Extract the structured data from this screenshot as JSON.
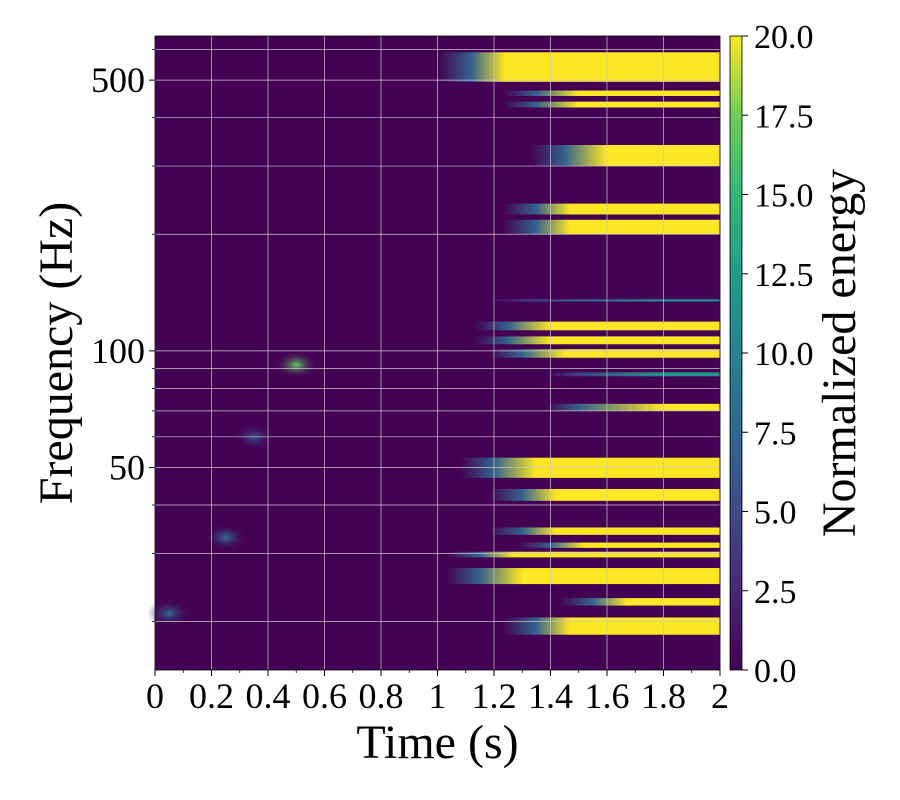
{
  "chart_data": {
    "type": "heatmap",
    "title": "",
    "xlabel": "Time (s)",
    "ylabel": "Frequency (Hz)",
    "colorbar_label": "Normalized energy",
    "colormap": "viridis",
    "xlim": [
      0,
      2
    ],
    "ylim_hz": [
      15,
      650
    ],
    "y_scale": "log",
    "grid": true,
    "x_ticks": [
      0,
      0.2,
      0.4,
      0.6,
      0.8,
      1,
      1.2,
      1.4,
      1.6,
      1.8,
      2
    ],
    "x_tick_labels": [
      "0",
      "0.2",
      "0.4",
      "0.6",
      "0.8",
      "1",
      "1.2",
      "1.4",
      "1.6",
      "1.8",
      "2"
    ],
    "y_major_ticks": [
      50,
      100,
      500
    ],
    "y_major_labels": [
      "50",
      "100",
      "500"
    ],
    "y_minor_ticks": [
      20,
      30,
      40,
      60,
      70,
      80,
      90,
      200,
      300,
      400,
      600
    ],
    "colorbar_range": [
      0,
      20
    ],
    "colorbar_ticks": [
      0,
      2.5,
      5,
      7.5,
      10,
      12.5,
      15,
      17.5,
      20
    ],
    "colorbar_tick_labels": [
      "0.0",
      "2.5",
      "5.0",
      "7.5",
      "10.0",
      "12.5",
      "15.0",
      "17.5",
      "20.0"
    ],
    "colors": {
      "viridis_low": "#440154",
      "viridis_mid": "#21918c",
      "viridis_high": "#fde725",
      "grid": "#c8c8c8"
    },
    "high_energy_bands": [
      {
        "f_lo": 495,
        "f_hi": 590,
        "t_start": 1.12,
        "t_ramp": 0.12
      },
      {
        "f_lo": 455,
        "f_hi": 470,
        "t_start": 1.35,
        "t_ramp": 0.15
      },
      {
        "f_lo": 425,
        "f_hi": 440,
        "t_start": 1.35,
        "t_ramp": 0.15
      },
      {
        "f_lo": 300,
        "f_hi": 340,
        "t_start": 1.45,
        "t_ramp": 0.15
      },
      {
        "f_lo": 225,
        "f_hi": 240,
        "t_start": 1.35,
        "t_ramp": 0.12
      },
      {
        "f_lo": 200,
        "f_hi": 218,
        "t_start": 1.35,
        "t_ramp": 0.12
      },
      {
        "f_lo": 134,
        "f_hi": 136,
        "t_start": 1.3,
        "t_ramp": 0.5,
        "max": 10
      },
      {
        "f_lo": 113,
        "f_hi": 119,
        "t_start": 1.25,
        "t_ramp": 0.15
      },
      {
        "f_lo": 104,
        "f_hi": 109,
        "t_start": 1.25,
        "t_ramp": 0.15
      },
      {
        "f_lo": 96,
        "f_hi": 101,
        "t_start": 1.3,
        "t_ramp": 0.15
      },
      {
        "f_lo": 86,
        "f_hi": 88,
        "t_start": 1.5,
        "t_ramp": 0.3,
        "max": 12
      },
      {
        "f_lo": 70,
        "f_hi": 73,
        "t_start": 1.5,
        "t_ramp": 0.3
      },
      {
        "f_lo": 47,
        "f_hi": 53,
        "t_start": 1.2,
        "t_ramp": 0.15
      },
      {
        "f_lo": 41,
        "f_hi": 44,
        "t_start": 1.3,
        "t_ramp": 0.12
      },
      {
        "f_lo": 33.5,
        "f_hi": 35,
        "t_start": 1.3,
        "t_ramp": 0.12
      },
      {
        "f_lo": 31,
        "f_hi": 32,
        "t_start": 1.4,
        "t_ramp": 0.12
      },
      {
        "f_lo": 29.3,
        "f_hi": 30.3,
        "t_start": 1.15,
        "t_ramp": 0.12
      },
      {
        "f_lo": 25,
        "f_hi": 27.5,
        "t_start": 1.15,
        "t_ramp": 0.15
      },
      {
        "f_lo": 22,
        "f_hi": 23,
        "t_start": 1.55,
        "t_ramp": 0.12
      },
      {
        "f_lo": 18.5,
        "f_hi": 20.5,
        "t_start": 1.35,
        "t_ramp": 0.12
      }
    ],
    "low_energy_spots": [
      {
        "t": 0.5,
        "f": 92,
        "value": 12
      },
      {
        "t": 0.25,
        "f": 33,
        "value": 6
      },
      {
        "t": 0.05,
        "f": 21,
        "value": 6
      },
      {
        "t": 0.35,
        "f": 60,
        "value": 4
      }
    ]
  }
}
